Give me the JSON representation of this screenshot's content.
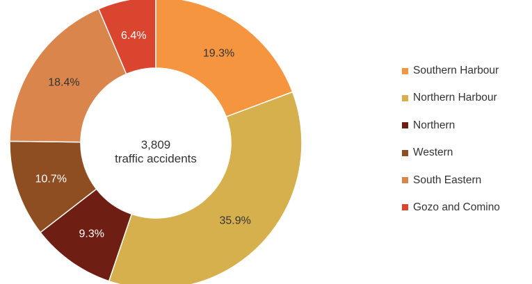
{
  "chart_data": {
    "type": "pie",
    "donut": true,
    "center_label": {
      "value": "3,809",
      "text": "traffic accidents"
    },
    "slices": [
      {
        "name": "Southern Harbour",
        "value": 19.3,
        "label": "19.3%",
        "color": "#F5953F",
        "label_color": "#333333"
      },
      {
        "name": "Northern Harbour",
        "value": 35.9,
        "label": "35.9%",
        "color": "#D6B04C",
        "label_color": "#333333"
      },
      {
        "name": "Northern",
        "value": 9.3,
        "label": "9.3%",
        "color": "#6E1E12",
        "label_color": "#ffffff"
      },
      {
        "name": "Western",
        "value": 10.7,
        "label": "10.7%",
        "color": "#8F4E22",
        "label_color": "#ffffff"
      },
      {
        "name": "South Eastern",
        "value": 18.4,
        "label": "18.4%",
        "color": "#D9854B",
        "label_color": "#333333"
      },
      {
        "name": "Gozo and Comino",
        "value": 6.4,
        "label": "6.4%",
        "color": "#D9452E",
        "label_color": "#ffffff"
      }
    ],
    "legend_position": "right"
  }
}
